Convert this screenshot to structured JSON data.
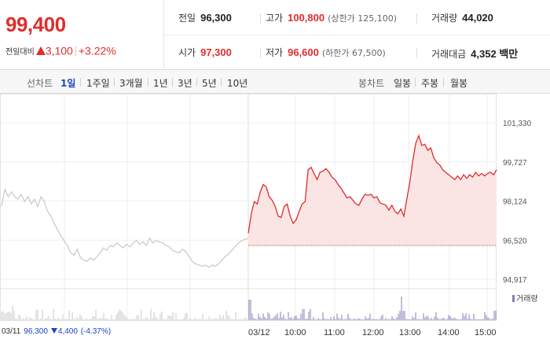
{
  "quote": {
    "current_price": "99,400",
    "change_label": "전일대비",
    "change_amount": "3,100",
    "change_percent": "+3.22%",
    "direction": "up",
    "up_color": "#e02c2c",
    "down_color": "#1a45c4"
  },
  "stats": {
    "prev_close": {
      "label": "전일",
      "value": "96,300"
    },
    "high": {
      "label": "고가",
      "value": "100,800",
      "sub": "(상한가 125,100)"
    },
    "volume": {
      "label": "거래량",
      "value": "44,020"
    },
    "open": {
      "label": "시가",
      "value": "97,300"
    },
    "low": {
      "label": "저가",
      "value": "96,600",
      "sub": "(하한가 67,500)"
    },
    "turnover": {
      "label": "거래대금",
      "value": "4,352 백만"
    }
  },
  "period_bar": {
    "line_label": "선차트",
    "line_options": [
      "1일",
      "1주일",
      "3개월",
      "1년",
      "3년",
      "5년",
      "10년"
    ],
    "line_active": "1일",
    "candle_label": "봉차트",
    "candle_options": [
      "일봉",
      "주봉",
      "월봉"
    ]
  },
  "chart_data": {
    "type": "line",
    "y_ticks": [
      "101,330",
      "99,727",
      "98,124",
      "96,520",
      "94,917"
    ],
    "ylim": [
      94917,
      101330
    ],
    "x_ticks": [
      "03/11",
      "03/12",
      "10:00",
      "11:00",
      "12:00",
      "13:00",
      "14:00",
      "15:00"
    ],
    "reference_line": 96300,
    "previous_day": {
      "date": "03/11",
      "color": "#c8c8c8",
      "values": [
        97900,
        98600,
        98300,
        98500,
        98300,
        98200,
        98400,
        98100,
        98300,
        98000,
        98200,
        97900,
        98300,
        98100,
        97700,
        97500,
        97200,
        96950,
        96700,
        96500,
        96300,
        96000,
        95900,
        96150,
        95800,
        95700,
        95650,
        95800,
        95700,
        95850,
        96000,
        96200,
        96100,
        96300,
        96250,
        96400,
        96300,
        96200,
        96350,
        96250,
        96400,
        96500,
        96350,
        96450,
        96300,
        96600,
        96400,
        96500,
        96450,
        96400,
        96300,
        96250,
        96100,
        96050,
        96000,
        96150,
        96050,
        95850,
        95650,
        95550,
        95500,
        95450,
        95500,
        95400,
        95500,
        95450,
        95550,
        95700,
        95850,
        95950,
        96100,
        96250,
        96400,
        96500,
        96550,
        96600
      ]
    },
    "today": {
      "date": "03/12",
      "color": "#e02c2c",
      "values": [
        96800,
        97600,
        98100,
        98000,
        98500,
        98800,
        98700,
        98300,
        98150,
        97900,
        97500,
        97450,
        97900,
        98000,
        97500,
        97200,
        97350,
        97700,
        98000,
        98100,
        99400,
        99500,
        99250,
        99000,
        99300,
        99350,
        99450,
        99300,
        99100,
        99000,
        98800,
        98650,
        98450,
        98250,
        98300,
        98150,
        98000,
        97950,
        98200,
        98400,
        98350,
        98400,
        98250,
        98300,
        98050,
        98000,
        97950,
        97750,
        97950,
        97700,
        97600,
        97800,
        97500,
        98200,
        98900,
        99800,
        100500,
        100800,
        100400,
        100450,
        100200,
        100300,
        99900,
        99700,
        99600,
        99400,
        99300,
        99200,
        99100,
        99000,
        99150,
        99000,
        99200,
        99050,
        99200,
        99100,
        99300,
        99150,
        99250,
        99150,
        99250,
        99300,
        99200,
        99400
      ]
    },
    "volume_label": "거래량",
    "volume_color": "#8b7bb3",
    "prev_close_info": {
      "date": "03/11",
      "price": "96,300",
      "change": "4,400",
      "change_pct": "(-4.37%)",
      "direction": "down"
    }
  }
}
